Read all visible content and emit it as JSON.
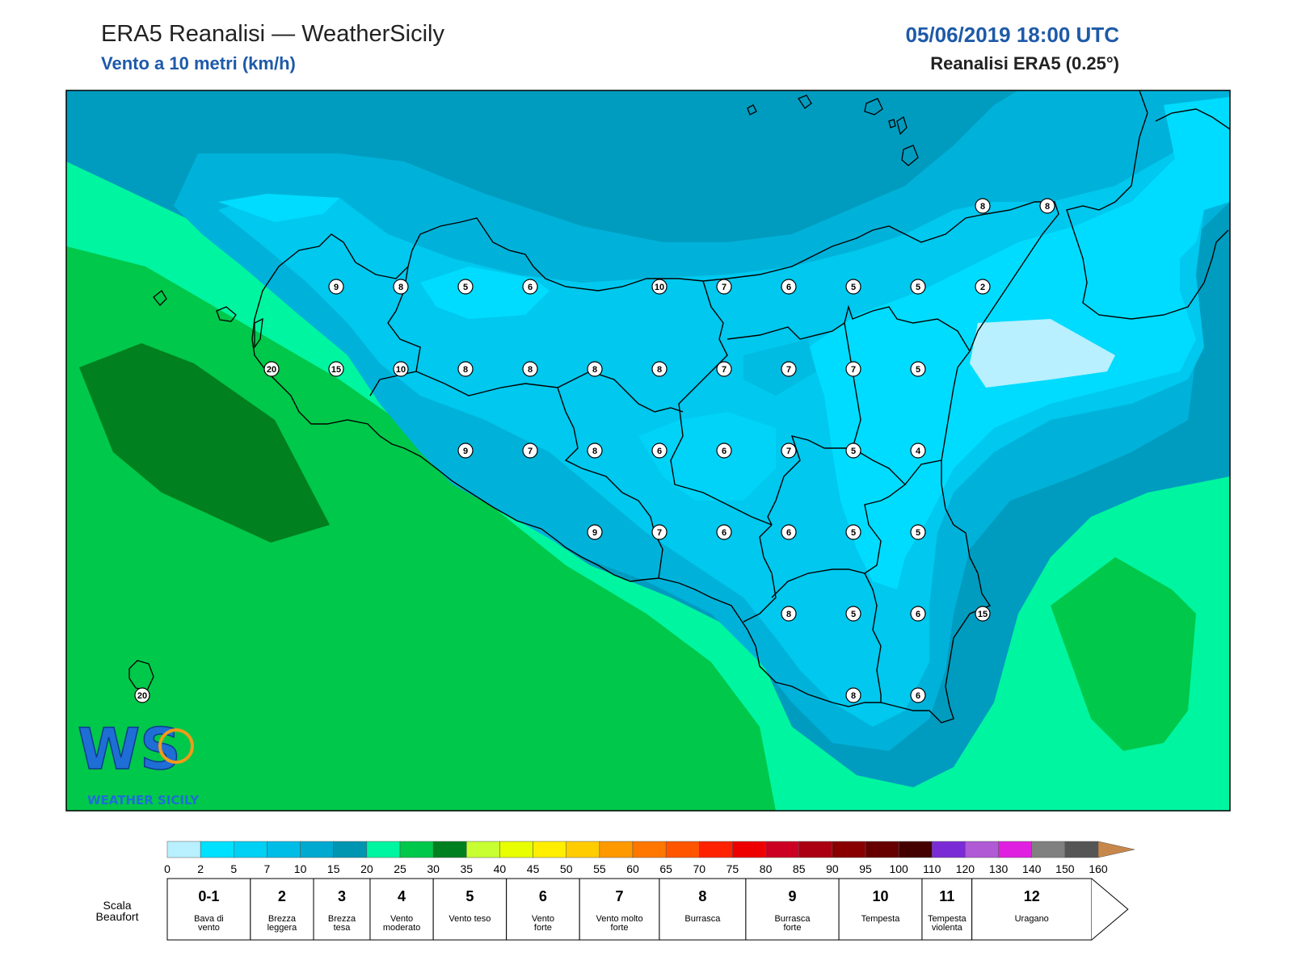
{
  "header": {
    "title": "ERA5 Reanalisi — WeatherSicily",
    "subtitle": "Vento a 10 metri (km/h)",
    "datetime": "05/06/2019 18:00 UTC",
    "source": "Reanalisi ERA5 (0.25°)"
  },
  "logo": {
    "letters": "WS",
    "text": "WEATHER SICILY"
  },
  "colors": {
    "band_0_2": "#b8f0ff",
    "band_2_5": "#00dcff",
    "band_5_7": "#00c8ee",
    "band_7_10": "#00b2da",
    "band_10_15": "#009cbf",
    "band_15_20": "#00f5a0",
    "band_20_25": "#00c84a",
    "band_25_30": "#00801f",
    "coast": "#000000"
  },
  "station_values": [
    {
      "value": "8"
    },
    {
      "value": "8"
    },
    {
      "value": "9"
    },
    {
      "value": "8"
    },
    {
      "value": "5"
    },
    {
      "value": "6"
    },
    {
      "value": "10"
    },
    {
      "value": "7"
    },
    {
      "value": "6"
    },
    {
      "value": "5"
    },
    {
      "value": "5"
    },
    {
      "value": "2"
    },
    {
      "value": "20"
    },
    {
      "value": "15"
    },
    {
      "value": "10"
    },
    {
      "value": "8"
    },
    {
      "value": "8"
    },
    {
      "value": "8"
    },
    {
      "value": "8"
    },
    {
      "value": "7"
    },
    {
      "value": "7"
    },
    {
      "value": "7"
    },
    {
      "value": "5"
    },
    {
      "value": "9"
    },
    {
      "value": "7"
    },
    {
      "value": "8"
    },
    {
      "value": "6"
    },
    {
      "value": "6"
    },
    {
      "value": "7"
    },
    {
      "value": "5"
    },
    {
      "value": "4"
    },
    {
      "value": "9"
    },
    {
      "value": "7"
    },
    {
      "value": "6"
    },
    {
      "value": "6"
    },
    {
      "value": "5"
    },
    {
      "value": "5"
    },
    {
      "value": "8"
    },
    {
      "value": "5"
    },
    {
      "value": "6"
    },
    {
      "value": "15"
    },
    {
      "value": "20"
    },
    {
      "value": "8"
    },
    {
      "value": "6"
    }
  ],
  "colorbar": {
    "ticks": [
      "0",
      "2",
      "5",
      "7",
      "10",
      "15",
      "20",
      "25",
      "30",
      "35",
      "40",
      "45",
      "50",
      "55",
      "60",
      "65",
      "70",
      "75",
      "80",
      "85",
      "90",
      "95",
      "100",
      "110",
      "120",
      "130",
      "140",
      "150",
      "160"
    ],
    "colors": [
      "#b8f0ff",
      "#00e0ff",
      "#00d0f4",
      "#00bde6",
      "#00a9cf",
      "#0096b2",
      "#00f5a0",
      "#00c84a",
      "#00801f",
      "#c8ff33",
      "#e8ff00",
      "#ffee00",
      "#ffcc00",
      "#ff9900",
      "#ff7700",
      "#ff5500",
      "#ff2200",
      "#ee0000",
      "#cc0022",
      "#aa0011",
      "#880000",
      "#660000",
      "#440000",
      "#7b2bd6",
      "#b05ad6",
      "#e020e0",
      "#808080",
      "#555555",
      "#000000",
      "#7a3f1e",
      "#c8874a"
    ]
  },
  "beaufort": {
    "label_line1": "Scala",
    "label_line2": "Beaufort",
    "classes": [
      {
        "num": "0-1",
        "desc1": "Bava di",
        "desc2": "vento"
      },
      {
        "num": "2",
        "desc1": "Brezza",
        "desc2": "leggera"
      },
      {
        "num": "3",
        "desc1": "Brezza",
        "desc2": "tesa"
      },
      {
        "num": "4",
        "desc1": "Vento",
        "desc2": "moderato"
      },
      {
        "num": "5",
        "desc1": "Vento teso",
        "desc2": ""
      },
      {
        "num": "6",
        "desc1": "Vento",
        "desc2": "forte"
      },
      {
        "num": "7",
        "desc1": "Vento molto",
        "desc2": "forte"
      },
      {
        "num": "8",
        "desc1": "Burrasca",
        "desc2": ""
      },
      {
        "num": "9",
        "desc1": "Burrasca",
        "desc2": "forte"
      },
      {
        "num": "10",
        "desc1": "Tempesta",
        "desc2": ""
      },
      {
        "num": "11",
        "desc1": "Tempesta",
        "desc2": "violenta"
      },
      {
        "num": "12",
        "desc1": "Uragano",
        "desc2": ""
      }
    ]
  }
}
